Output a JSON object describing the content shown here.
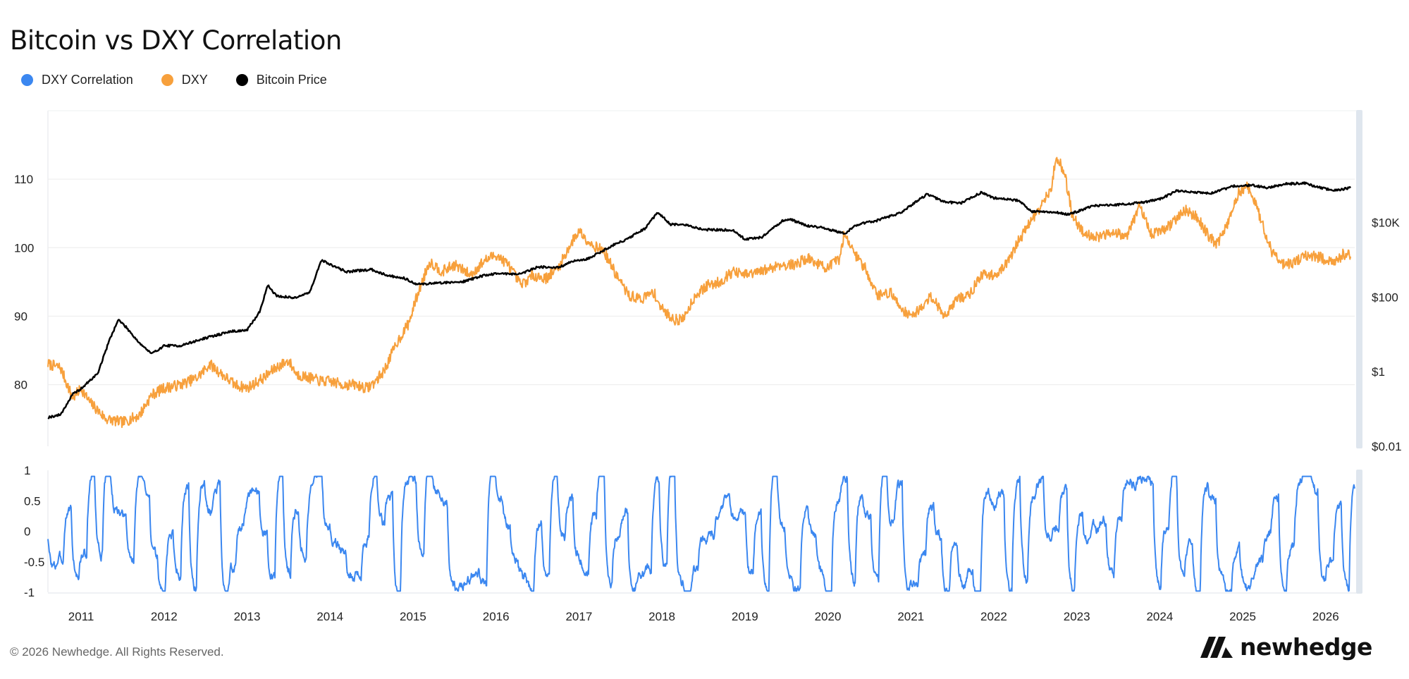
{
  "title": "Bitcoin vs DXY Correlation",
  "legend": [
    {
      "label": "DXY Correlation",
      "color": "#3b87f0"
    },
    {
      "label": "DXY",
      "color": "#f7a03c"
    },
    {
      "label": "Bitcoin Price",
      "color": "#000000"
    }
  ],
  "footer": "© 2026 Newhedge. All Rights Reserved.",
  "brand": {
    "name": "newhedge",
    "logo_icon": "newhedge-logo-icon"
  },
  "chart_data": [
    {
      "type": "line",
      "title": "Bitcoin vs DXY Correlation",
      "x_range": [
        2010.6,
        2026.35
      ],
      "x_ticks": [
        "2011",
        "2012",
        "2013",
        "2014",
        "2015",
        "2016",
        "2017",
        "2018",
        "2019",
        "2020",
        "2021",
        "2022",
        "2023",
        "2024",
        "2025",
        "2026"
      ],
      "y_left": {
        "ticks": [
          "80",
          "90",
          "100",
          "110"
        ],
        "range": [
          71,
          120
        ]
      },
      "y_right": {
        "ticks": [
          "$0.01",
          "$1",
          "$100",
          "$10K"
        ],
        "scale": "log",
        "range": [
          0.01,
          10000000
        ]
      },
      "series": [
        {
          "name": "DXY",
          "color": "#f7a03c",
          "axis": "left",
          "points": [
            [
              2010.6,
              83
            ],
            [
              2010.75,
              82.5
            ],
            [
              2010.9,
              78
            ],
            [
              2011.0,
              79.5
            ],
            [
              2011.1,
              77.5
            ],
            [
              2011.3,
              75
            ],
            [
              2011.5,
              74.5
            ],
            [
              2011.7,
              75.5
            ],
            [
              2011.85,
              78.5
            ],
            [
              2012.0,
              79.5
            ],
            [
              2012.2,
              80
            ],
            [
              2012.4,
              81
            ],
            [
              2012.55,
              83
            ],
            [
              2012.7,
              81.5
            ],
            [
              2012.85,
              80
            ],
            [
              2013.0,
              79.5
            ],
            [
              2013.2,
              81
            ],
            [
              2013.35,
              82.5
            ],
            [
              2013.5,
              83.5
            ],
            [
              2013.6,
              81.5
            ],
            [
              2013.75,
              81
            ],
            [
              2013.9,
              80.5
            ],
            [
              2014.0,
              80.5
            ],
            [
              2014.15,
              80
            ],
            [
              2014.3,
              80
            ],
            [
              2014.45,
              79.5
            ],
            [
              2014.55,
              80.5
            ],
            [
              2014.65,
              82
            ],
            [
              2014.8,
              86
            ],
            [
              2014.95,
              89
            ],
            [
              2015.05,
              93
            ],
            [
              2015.2,
              98
            ],
            [
              2015.35,
              96.5
            ],
            [
              2015.5,
              97.5
            ],
            [
              2015.7,
              96
            ],
            [
              2015.85,
              98
            ],
            [
              2016.0,
              99
            ],
            [
              2016.15,
              97.5
            ],
            [
              2016.3,
              94.5
            ],
            [
              2016.45,
              96
            ],
            [
              2016.6,
              95.5
            ],
            [
              2016.75,
              97
            ],
            [
              2016.9,
              100.5
            ],
            [
              2017.0,
              102.5
            ],
            [
              2017.15,
              100.5
            ],
            [
              2017.3,
              99.5
            ],
            [
              2017.45,
              96
            ],
            [
              2017.6,
              93
            ],
            [
              2017.75,
              92.5
            ],
            [
              2017.9,
              93.5
            ],
            [
              2018.0,
              91
            ],
            [
              2018.15,
              89.5
            ],
            [
              2018.25,
              89.5
            ],
            [
              2018.4,
              93
            ],
            [
              2018.55,
              94.5
            ],
            [
              2018.7,
              95
            ],
            [
              2018.85,
              96.5
            ],
            [
              2019.0,
              96
            ],
            [
              2019.2,
              96.5
            ],
            [
              2019.4,
              97.5
            ],
            [
              2019.6,
              97.5
            ],
            [
              2019.75,
              98.5
            ],
            [
              2019.9,
              97.5
            ],
            [
              2020.0,
              97
            ],
            [
              2020.15,
              98.5
            ],
            [
              2020.2,
              102.5
            ],
            [
              2020.3,
              99.5
            ],
            [
              2020.45,
              97
            ],
            [
              2020.6,
              93
            ],
            [
              2020.75,
              93.5
            ],
            [
              2020.9,
              91
            ],
            [
              2021.0,
              90
            ],
            [
              2021.15,
              91.5
            ],
            [
              2021.25,
              93
            ],
            [
              2021.4,
              90
            ],
            [
              2021.55,
              92.5
            ],
            [
              2021.7,
              93
            ],
            [
              2021.85,
              96
            ],
            [
              2022.0,
              96
            ],
            [
              2022.15,
              97.5
            ],
            [
              2022.3,
              101
            ],
            [
              2022.45,
              104
            ],
            [
              2022.6,
              106.5
            ],
            [
              2022.7,
              109
            ],
            [
              2022.75,
              113.5
            ],
            [
              2022.85,
              111
            ],
            [
              2022.95,
              104.5
            ],
            [
              2023.1,
              102
            ],
            [
              2023.3,
              101.5
            ],
            [
              2023.45,
              102.5
            ],
            [
              2023.6,
              101.5
            ],
            [
              2023.75,
              106
            ],
            [
              2023.9,
              102
            ],
            [
              2024.1,
              103
            ],
            [
              2024.3,
              105.5
            ],
            [
              2024.45,
              104.5
            ],
            [
              2024.6,
              101.5
            ],
            [
              2024.7,
              100.5
            ],
            [
              2024.85,
              104.5
            ],
            [
              2024.95,
              108
            ],
            [
              2025.05,
              109
            ],
            [
              2025.15,
              106.5
            ],
            [
              2025.25,
              103
            ],
            [
              2025.35,
              99.5
            ],
            [
              2025.5,
              97.5
            ],
            [
              2025.65,
              98
            ],
            [
              2025.8,
              99
            ],
            [
              2025.95,
              98.5
            ],
            [
              2026.1,
              97.5
            ],
            [
              2026.2,
              99
            ],
            [
              2026.3,
              99
            ]
          ]
        },
        {
          "name": "Bitcoin Price",
          "color": "#000000",
          "axis": "right",
          "scale": "log",
          "points": [
            [
              2010.6,
              0.06
            ],
            [
              2010.75,
              0.07
            ],
            [
              2010.9,
              0.25
            ],
            [
              2011.0,
              0.35
            ],
            [
              2011.2,
              0.9
            ],
            [
              2011.35,
              8
            ],
            [
              2011.45,
              25
            ],
            [
              2011.55,
              15
            ],
            [
              2011.7,
              6
            ],
            [
              2011.85,
              3
            ],
            [
              2012.0,
              5
            ],
            [
              2012.2,
              5
            ],
            [
              2012.5,
              8
            ],
            [
              2012.8,
              12
            ],
            [
              2013.0,
              13
            ],
            [
              2013.15,
              40
            ],
            [
              2013.25,
              210
            ],
            [
              2013.35,
              110
            ],
            [
              2013.55,
              95
            ],
            [
              2013.75,
              130
            ],
            [
              2013.9,
              1000
            ],
            [
              2014.0,
              750
            ],
            [
              2014.2,
              480
            ],
            [
              2014.5,
              550
            ],
            [
              2014.7,
              380
            ],
            [
              2014.9,
              320
            ],
            [
              2015.05,
              220
            ],
            [
              2015.3,
              240
            ],
            [
              2015.6,
              260
            ],
            [
              2015.85,
              380
            ],
            [
              2016.0,
              430
            ],
            [
              2016.3,
              420
            ],
            [
              2016.5,
              650
            ],
            [
              2016.75,
              620
            ],
            [
              2016.95,
              950
            ],
            [
              2017.1,
              1050
            ],
            [
              2017.4,
              2400
            ],
            [
              2017.6,
              3800
            ],
            [
              2017.8,
              7000
            ],
            [
              2017.95,
              19000
            ],
            [
              2018.1,
              9000
            ],
            [
              2018.3,
              8500
            ],
            [
              2018.5,
              6500
            ],
            [
              2018.85,
              6300
            ],
            [
              2019.0,
              3600
            ],
            [
              2019.2,
              4000
            ],
            [
              2019.45,
              11000
            ],
            [
              2019.55,
              12000
            ],
            [
              2019.75,
              8300
            ],
            [
              2019.95,
              7200
            ],
            [
              2020.2,
              5000
            ],
            [
              2020.35,
              8800
            ],
            [
              2020.6,
              11500
            ],
            [
              2020.9,
              19000
            ],
            [
              2021.0,
              29000
            ],
            [
              2021.2,
              58000
            ],
            [
              2021.4,
              36000
            ],
            [
              2021.6,
              33000
            ],
            [
              2021.85,
              64000
            ],
            [
              2022.0,
              46000
            ],
            [
              2022.3,
              39000
            ],
            [
              2022.45,
              20000
            ],
            [
              2022.7,
              19500
            ],
            [
              2022.9,
              16500
            ],
            [
              2023.2,
              28000
            ],
            [
              2023.5,
              30000
            ],
            [
              2023.8,
              35000
            ],
            [
              2024.0,
              42000
            ],
            [
              2024.2,
              70000
            ],
            [
              2024.6,
              60000
            ],
            [
              2024.9,
              95000
            ],
            [
              2025.1,
              100000
            ],
            [
              2025.3,
              85000
            ],
            [
              2025.5,
              108000
            ],
            [
              2025.75,
              115000
            ],
            [
              2025.9,
              90000
            ],
            [
              2026.1,
              72000
            ],
            [
              2026.3,
              85000
            ]
          ]
        },
        {
          "name": "DXY Correlation",
          "color": "#3b87f0",
          "range": [
            -1,
            1
          ],
          "ticks": [
            "1",
            "0.5",
            "0",
            "-0.5",
            "-1"
          ],
          "note_approx": "oscillating rolling correlation between -1 and 1"
        }
      ]
    }
  ]
}
